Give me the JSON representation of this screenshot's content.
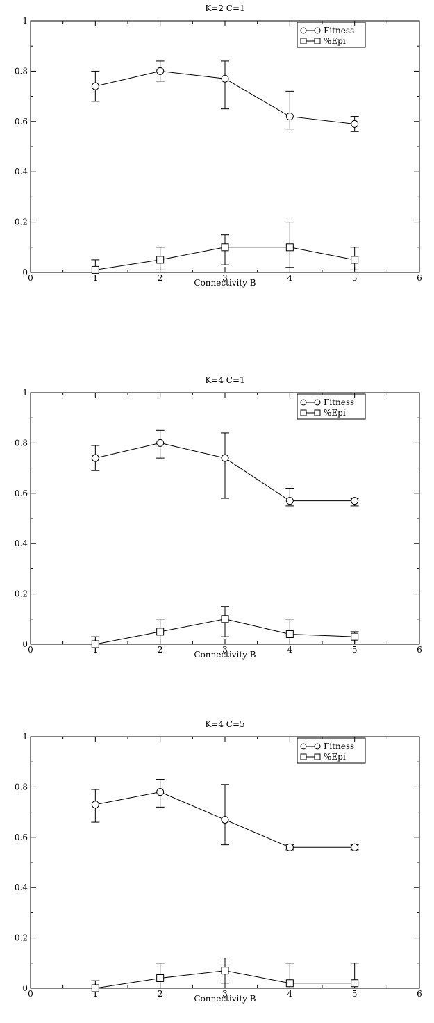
{
  "chart_data": [
    {
      "type": "line",
      "title": "K=2 C=1",
      "xlabel": "Connectivity B",
      "ylabel": "",
      "xlim": [
        0,
        6
      ],
      "ylim": [
        0,
        1
      ],
      "xticks": [
        "0",
        "1",
        "2",
        "3",
        "4",
        "5",
        "6"
      ],
      "yticks": [
        "0",
        "0.2",
        "0.4",
        "0.6",
        "0.8",
        "1"
      ],
      "legend_position": "top-right",
      "grid": false,
      "series": [
        {
          "name": "Fitness",
          "marker": "circle",
          "x": [
            1,
            2,
            3,
            4,
            5
          ],
          "y": [
            0.74,
            0.8,
            0.77,
            0.62,
            0.59
          ],
          "err_low": [
            0.68,
            0.76,
            0.65,
            0.57,
            0.56
          ],
          "err_high": [
            0.8,
            0.84,
            0.84,
            0.72,
            0.62
          ]
        },
        {
          "name": "%Epi",
          "marker": "square",
          "x": [
            1,
            2,
            3,
            4,
            5
          ],
          "y": [
            0.01,
            0.05,
            0.1,
            0.1,
            0.05
          ],
          "err_low": [
            0.0,
            0.01,
            0.03,
            0.02,
            0.01
          ],
          "err_high": [
            0.05,
            0.1,
            0.15,
            0.2,
            0.1
          ]
        }
      ]
    },
    {
      "type": "line",
      "title": "K=4 C=1",
      "xlabel": "Connectivity B",
      "ylabel": "",
      "xlim": [
        0,
        6
      ],
      "ylim": [
        0,
        1
      ],
      "xticks": [
        "0",
        "1",
        "2",
        "3",
        "4",
        "5",
        "6"
      ],
      "yticks": [
        "0",
        "0.2",
        "0.4",
        "0.6",
        "0.8",
        "1"
      ],
      "legend_position": "top-right",
      "grid": false,
      "series": [
        {
          "name": "Fitness",
          "marker": "circle",
          "x": [
            1,
            2,
            3,
            4,
            5
          ],
          "y": [
            0.74,
            0.8,
            0.74,
            0.57,
            0.57
          ],
          "err_low": [
            0.69,
            0.74,
            0.58,
            0.55,
            0.55
          ],
          "err_high": [
            0.79,
            0.85,
            0.84,
            0.62,
            0.58
          ]
        },
        {
          "name": "%Epi",
          "marker": "square",
          "x": [
            1,
            2,
            3,
            4,
            5
          ],
          "y": [
            0.0,
            0.05,
            0.1,
            0.04,
            0.03
          ],
          "err_low": [
            0.0,
            0.0,
            0.03,
            0.0,
            0.0
          ],
          "err_high": [
            0.03,
            0.1,
            0.15,
            0.1,
            0.05
          ]
        }
      ]
    },
    {
      "type": "line",
      "title": "K=4 C=5",
      "xlabel": "Connectivity B",
      "ylabel": "",
      "xlim": [
        0,
        6
      ],
      "ylim": [
        0,
        1
      ],
      "xticks": [
        "0",
        "1",
        "2",
        "3",
        "4",
        "5",
        "6"
      ],
      "yticks": [
        "0",
        "0.2",
        "0.4",
        "0.6",
        "0.8",
        "1"
      ],
      "legend_position": "top-right",
      "grid": false,
      "series": [
        {
          "name": "Fitness",
          "marker": "circle",
          "x": [
            1,
            2,
            3,
            4,
            5
          ],
          "y": [
            0.73,
            0.78,
            0.67,
            0.56,
            0.56
          ],
          "err_low": [
            0.66,
            0.72,
            0.57,
            0.55,
            0.55
          ],
          "err_high": [
            0.79,
            0.83,
            0.81,
            0.57,
            0.57
          ]
        },
        {
          "name": "%Epi",
          "marker": "square",
          "x": [
            1,
            2,
            3,
            4,
            5
          ],
          "y": [
            0.0,
            0.04,
            0.07,
            0.02,
            0.02
          ],
          "err_low": [
            0.0,
            0.0,
            0.02,
            0.0,
            0.0
          ],
          "err_high": [
            0.03,
            0.1,
            0.12,
            0.1,
            0.1
          ]
        }
      ]
    }
  ]
}
